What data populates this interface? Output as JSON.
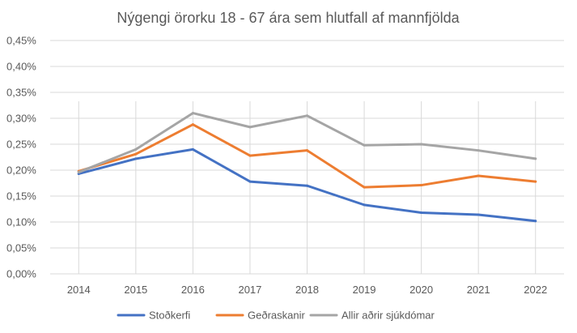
{
  "chart_data": {
    "type": "line",
    "title": "Nýgengi örorku 18 - 67 ára sem hlutfall af mannfjölda",
    "categories": [
      "2014",
      "2015",
      "2016",
      "2017",
      "2018",
      "2019",
      "2020",
      "2021",
      "2022"
    ],
    "series": [
      {
        "name": "Stoðkerfi",
        "color": "#4472C4",
        "values": [
          0.193,
          0.222,
          0.24,
          0.178,
          0.17,
          0.133,
          0.118,
          0.114,
          0.102
        ]
      },
      {
        "name": "Geðraskanir",
        "color": "#ED7D31",
        "values": [
          0.198,
          0.231,
          0.288,
          0.228,
          0.238,
          0.167,
          0.171,
          0.189,
          0.178
        ]
      },
      {
        "name": "Allir aðrir sjúkdómar",
        "color": "#A5A5A5",
        "values": [
          0.196,
          0.24,
          0.31,
          0.283,
          0.305,
          0.248,
          0.25,
          0.238,
          0.222
        ]
      }
    ],
    "ylim": [
      0,
      0.45
    ],
    "yticks": [
      "0,00%",
      "0,05%",
      "0,10%",
      "0,15%",
      "0,20%",
      "0,25%",
      "0,30%",
      "0,35%",
      "0,40%",
      "0,45%"
    ],
    "xlabel": "",
    "ylabel": "",
    "grid": true,
    "legend_position": "bottom"
  }
}
